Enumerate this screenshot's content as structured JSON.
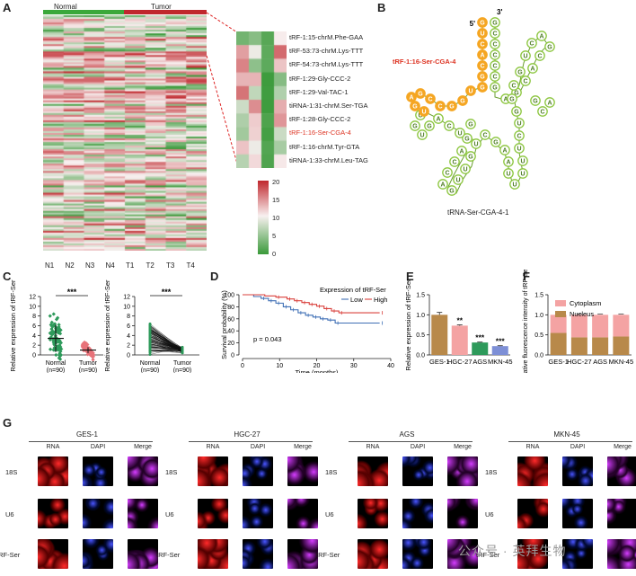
{
  "panels": {
    "A": "A",
    "B": "B",
    "C": "C",
    "D": "D",
    "E": "E",
    "F": "F",
    "G": "G"
  },
  "panelA": {
    "group_normal": "Normal",
    "group_tumor": "Tumor",
    "samples": [
      "N1",
      "N2",
      "N3",
      "N4",
      "T1",
      "T2",
      "T3",
      "T4"
    ],
    "zoom_labels": [
      "tRF-1:15-chrM.Phe-GAA",
      "tRF-53:73-chrM.Lys-TTT",
      "tRF-54:73-chrM.Lys-TTT",
      "tRF-1:29-Gly-CCC-2",
      "tRF-1:29-Val-TAC-1",
      "tiRNA-1:31-chrM.Ser-TGA",
      "tRF-1:28-Gly-CCC-2",
      "tRF-1:16-Ser-CGA-4",
      "tRF-1:16-chrM.Tyr-GTA",
      "tiRNA-1:33-chrM.Leu-TAG"
    ],
    "highlight_index": 7,
    "legend_ticks": [
      "20",
      "15",
      "10",
      "5",
      "0"
    ],
    "colors": {
      "high": "#c0272d",
      "low": "#3a9a3a",
      "normal_bar": "#3aa83a",
      "tumor_bar": "#c0272d"
    }
  },
  "panelB": {
    "trf_label": "tRF-1:16-Ser-CGA-4",
    "five_prime": "5'",
    "three_prime": "3'",
    "caption": "tRNA-Ser-CGA-4-1",
    "orange_seq": [
      "G",
      "U",
      "C",
      "A",
      "C",
      "G",
      "G",
      "U",
      "G",
      "G",
      "C",
      "C",
      "G",
      "A",
      "G",
      "U"
    ],
    "colors": {
      "orange": "#f5a623",
      "green": "#8cc63f"
    }
  },
  "panelC": {
    "ylabel": "Relative expression of tRF-Ser",
    "yticks": [
      "0",
      "2",
      "4",
      "6",
      "8",
      "10",
      "12"
    ],
    "sig": "***",
    "groups": [
      "Normal",
      "Tumor"
    ],
    "n": [
      "(n=90)",
      "(n=90)"
    ],
    "chart_data": {
      "type": "scatter",
      "categories": [
        "Normal",
        "Tumor"
      ],
      "means": [
        3.4,
        1.0
      ],
      "sd": [
        2.8,
        0.6
      ],
      "ylim": [
        0,
        12
      ],
      "ylabel": "Relative expression of tRF-Ser"
    }
  },
  "panelD": {
    "ylabel": "Survival probability (%)",
    "xlabel": "Time (months)",
    "legend_title": "Expression of tRF-Ser",
    "legend_low": "Low",
    "legend_high": "High",
    "pvalue": "p = 0.043",
    "yticks": [
      "0",
      "20",
      "40",
      "60",
      "80",
      "100"
    ],
    "xticks": [
      "0",
      "10",
      "20",
      "30",
      "40"
    ],
    "chart_data": {
      "type": "line",
      "series": [
        {
          "name": "Low",
          "x": [
            0,
            3,
            5,
            7,
            9,
            11,
            13,
            15,
            17,
            19,
            21,
            23,
            25,
            37
          ],
          "y": [
            100,
            97,
            94,
            90,
            86,
            80,
            75,
            70,
            66,
            63,
            60,
            58,
            53,
            53
          ]
        },
        {
          "name": "High",
          "x": [
            0,
            6,
            9,
            12,
            14,
            16,
            18,
            20,
            22,
            24,
            26,
            37
          ],
          "y": [
            100,
            98,
            96,
            93,
            90,
            87,
            84,
            81,
            77,
            73,
            70,
            70
          ]
        }
      ],
      "xlim": [
        0,
        40
      ],
      "ylim": [
        0,
        100
      ]
    }
  },
  "panelE": {
    "ylabel": "Relative expression of tRF-Ser",
    "yticks": [
      "0.0",
      "0.5",
      "1.0",
      "1.5"
    ],
    "chart_data": {
      "type": "bar",
      "categories": [
        "GES-1",
        "HGC-27",
        "AGS",
        "MKN-45"
      ],
      "values": [
        1.0,
        0.73,
        0.31,
        0.22
      ],
      "errors": [
        0.06,
        0.02,
        0.01,
        0.01
      ],
      "sig": [
        "",
        "**",
        "***",
        "***"
      ],
      "colors": [
        "#b8894a",
        "#f4a3a3",
        "#2e9a5b",
        "#7d8fd6"
      ],
      "ylim": [
        0,
        1.5
      ]
    }
  },
  "panelF": {
    "ylabel": "Relative fluorescence intensity of tRF-Ser",
    "yticks": [
      "0.0",
      "0.5",
      "1.0",
      "1.5"
    ],
    "legend": [
      "Cytoplasm",
      "Nucleus"
    ],
    "chart_data": {
      "type": "bar",
      "stacked": true,
      "categories": [
        "GES-1",
        "HGC-27",
        "AGS",
        "MKN-45"
      ],
      "series": [
        {
          "name": "Nucleus",
          "values": [
            0.55,
            0.44,
            0.44,
            0.46
          ]
        },
        {
          "name": "Cytoplasm",
          "values": [
            0.45,
            0.56,
            0.56,
            0.54
          ]
        }
      ],
      "colors": {
        "Cytoplasm": "#f4a3a3",
        "Nucleus": "#b8894a"
      },
      "ylim": [
        0,
        1.5
      ]
    }
  },
  "panelG": {
    "cells": [
      "GES-1",
      "HGC-27",
      "AGS",
      "MKN-45"
    ],
    "channels": [
      "RNA",
      "DAPI",
      "Merge"
    ],
    "rows": [
      "18S",
      "U6",
      "tRF-Ser"
    ]
  },
  "watermark": "公众号 · 英拜生物"
}
